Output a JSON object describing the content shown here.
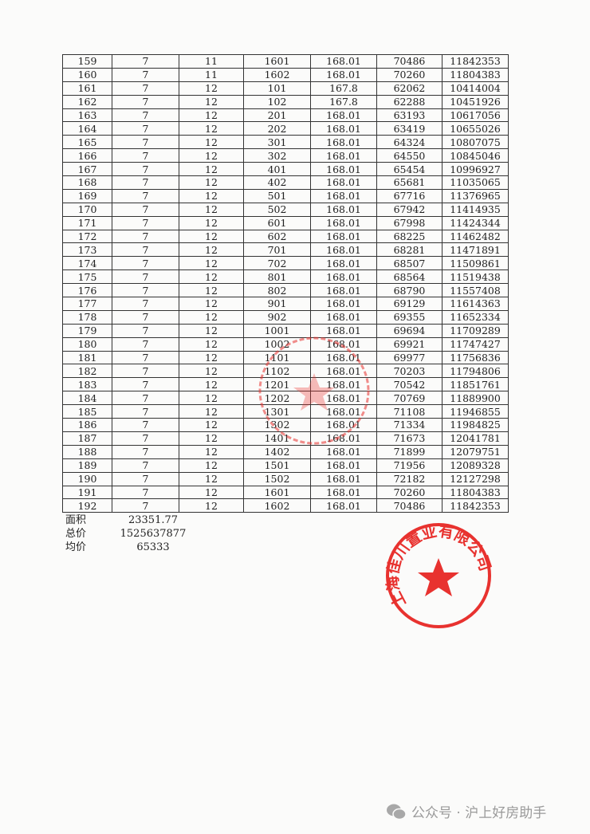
{
  "table": {
    "rows": [
      [
        "159",
        "7",
        "11",
        "1601",
        "168.01",
        "70486",
        "11842353"
      ],
      [
        "160",
        "7",
        "11",
        "1602",
        "168.01",
        "70260",
        "11804383"
      ],
      [
        "161",
        "7",
        "12",
        "101",
        "167.8",
        "62062",
        "10414004"
      ],
      [
        "162",
        "7",
        "12",
        "102",
        "167.8",
        "62288",
        "10451926"
      ],
      [
        "163",
        "7",
        "12",
        "201",
        "168.01",
        "63193",
        "10617056"
      ],
      [
        "164",
        "7",
        "12",
        "202",
        "168.01",
        "63419",
        "10655026"
      ],
      [
        "165",
        "7",
        "12",
        "301",
        "168.01",
        "64324",
        "10807075"
      ],
      [
        "166",
        "7",
        "12",
        "302",
        "168.01",
        "64550",
        "10845046"
      ],
      [
        "167",
        "7",
        "12",
        "401",
        "168.01",
        "65454",
        "10996927"
      ],
      [
        "168",
        "7",
        "12",
        "402",
        "168.01",
        "65681",
        "11035065"
      ],
      [
        "169",
        "7",
        "12",
        "501",
        "168.01",
        "67716",
        "11376965"
      ],
      [
        "170",
        "7",
        "12",
        "502",
        "168.01",
        "67942",
        "11414935"
      ],
      [
        "171",
        "7",
        "12",
        "601",
        "168.01",
        "67998",
        "11424344"
      ],
      [
        "172",
        "7",
        "12",
        "602",
        "168.01",
        "68225",
        "11462482"
      ],
      [
        "173",
        "7",
        "12",
        "701",
        "168.01",
        "68281",
        "11471891"
      ],
      [
        "174",
        "7",
        "12",
        "702",
        "168.01",
        "68507",
        "11509861"
      ],
      [
        "175",
        "7",
        "12",
        "801",
        "168.01",
        "68564",
        "11519438"
      ],
      [
        "176",
        "7",
        "12",
        "802",
        "168.01",
        "68790",
        "11557408"
      ],
      [
        "177",
        "7",
        "12",
        "901",
        "168.01",
        "69129",
        "11614363"
      ],
      [
        "178",
        "7",
        "12",
        "902",
        "168.01",
        "69355",
        "11652334"
      ],
      [
        "179",
        "7",
        "12",
        "1001",
        "168.01",
        "69694",
        "11709289"
      ],
      [
        "180",
        "7",
        "12",
        "1002",
        "168.01",
        "69921",
        "11747427"
      ],
      [
        "181",
        "7",
        "12",
        "1101",
        "168.01",
        "69977",
        "11756836"
      ],
      [
        "182",
        "7",
        "12",
        "1102",
        "168.01",
        "70203",
        "11794806"
      ],
      [
        "183",
        "7",
        "12",
        "1201",
        "168.01",
        "70542",
        "11851761"
      ],
      [
        "184",
        "7",
        "12",
        "1202",
        "168.01",
        "70769",
        "11889900"
      ],
      [
        "185",
        "7",
        "12",
        "1301",
        "168.01",
        "71108",
        "11946855"
      ],
      [
        "186",
        "7",
        "12",
        "1302",
        "168.01",
        "71334",
        "11984825"
      ],
      [
        "187",
        "7",
        "12",
        "1401",
        "168.01",
        "71673",
        "12041781"
      ],
      [
        "188",
        "7",
        "12",
        "1402",
        "168.01",
        "71899",
        "12079751"
      ],
      [
        "189",
        "7",
        "12",
        "1501",
        "168.01",
        "71956",
        "12089328"
      ],
      [
        "190",
        "7",
        "12",
        "1502",
        "168.01",
        "72182",
        "12127298"
      ],
      [
        "191",
        "7",
        "12",
        "1601",
        "168.01",
        "70260",
        "11804383"
      ],
      [
        "192",
        "7",
        "12",
        "1602",
        "168.01",
        "70486",
        "11842353"
      ]
    ]
  },
  "summary": {
    "area_label": "面积",
    "area_value": "23351.77",
    "total_label": "总价",
    "total_value": "1525637877",
    "avg_label": "均价",
    "avg_value": "65333"
  },
  "stamp": {
    "text": "上海佳川置业有限公司",
    "color": "#e8322f"
  },
  "footer": {
    "icon": "wechat-icon",
    "text": "公众号 · 沪上好房助手"
  }
}
